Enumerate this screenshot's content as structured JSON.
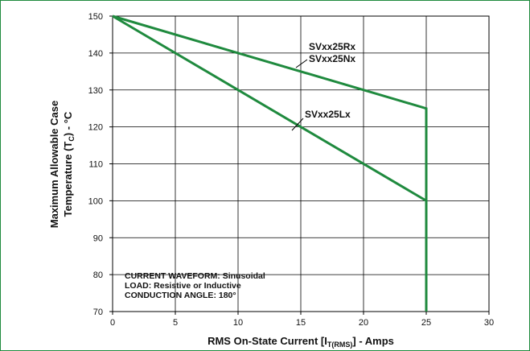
{
  "chart_data": {
    "type": "line",
    "xlabel_main": "RMS On-State Current [I",
    "xlabel_sub": "T(RMS)",
    "xlabel_tail": "] - Amps",
    "ylabel_line1": "Maximum Allowable Case",
    "ylabel_line2_main": "Temperature (T",
    "ylabel_line2_sub": "C",
    "ylabel_line2_tail": ") - °C",
    "xlim": [
      0,
      30
    ],
    "ylim": [
      70,
      150
    ],
    "x_ticks": [
      0,
      5,
      10,
      15,
      20,
      25,
      30
    ],
    "y_ticks": [
      70,
      80,
      90,
      100,
      110,
      120,
      130,
      140,
      150
    ],
    "grid": true,
    "line_color": "#1f8a3e",
    "series": [
      {
        "labels": [
          "SVxx25Rx",
          "SVxx25Nx"
        ],
        "points": [
          [
            0,
            150
          ],
          [
            25,
            125
          ],
          [
            25,
            70
          ]
        ]
      },
      {
        "labels": [
          "SVxx25Lx"
        ],
        "points": [
          [
            0,
            150
          ],
          [
            25,
            100
          ],
          [
            25,
            70
          ]
        ]
      }
    ],
    "annotations": [
      "CURRENT WAVEFORM: Sinusoidal",
      "LOAD: Resistive or Inductive",
      "CONDUCTION ANGLE: 180°"
    ]
  }
}
